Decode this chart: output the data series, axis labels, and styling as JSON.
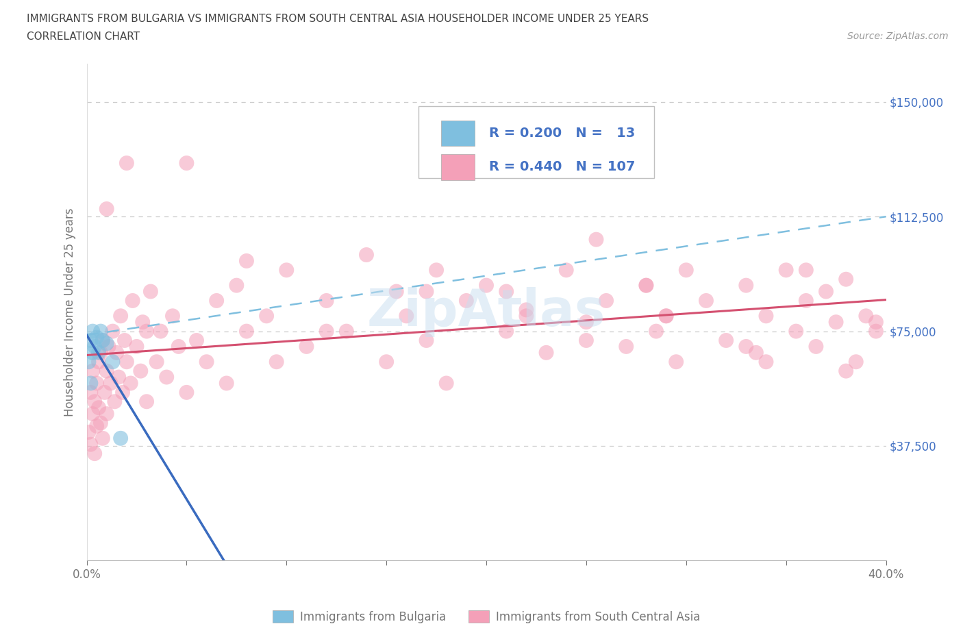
{
  "title_line1": "IMMIGRANTS FROM BULGARIA VS IMMIGRANTS FROM SOUTH CENTRAL ASIA HOUSEHOLDER INCOME UNDER 25 YEARS",
  "title_line2": "CORRELATION CHART",
  "source_text": "Source: ZipAtlas.com",
  "ylabel": "Householder Income Under 25 years",
  "xlim": [
    0.0,
    0.4
  ],
  "ylim": [
    0,
    162500
  ],
  "ytick_positions": [
    0,
    37500,
    75000,
    112500,
    150000
  ],
  "ytick_labels": [
    "",
    "$37,500",
    "$75,000",
    "$112,500",
    "$150,000"
  ],
  "xtick_positions": [
    0.0,
    0.05,
    0.1,
    0.15,
    0.2,
    0.25,
    0.3,
    0.35,
    0.4
  ],
  "xtick_labels": [
    "0.0%",
    "",
    "",
    "",
    "",
    "",
    "",
    "",
    "40.0%"
  ],
  "R_bulgaria": 0.2,
  "N_bulgaria": 13,
  "R_sca": 0.44,
  "N_sca": 107,
  "bulgaria_color": "#7fbfdf",
  "sca_color": "#f4a0b8",
  "regression_bulgaria_solid_color": "#3a6bbf",
  "regression_sca_color": "#d45070",
  "regression_bulgaria_dash_color": "#7fbfdf",
  "bg_color": "#ffffff",
  "grid_color": "#cccccc",
  "watermark_text": "ZipAtlas",
  "watermark_color": "#c8dff0",
  "title_color": "#444444",
  "source_color": "#999999",
  "axis_label_color": "#777777",
  "right_tick_color": "#4472c4",
  "legend_text_color": "#4472c4",
  "bottom_legend_bulgaria_label": "Immigrants from Bulgaria",
  "bottom_legend_sca_label": "Immigrants from South Central Asia",
  "bg_x": [
    0.001,
    0.002,
    0.002,
    0.003,
    0.003,
    0.004,
    0.005,
    0.006,
    0.007,
    0.008,
    0.01,
    0.013,
    0.017
  ],
  "bg_y": [
    65000,
    72000,
    58000,
    68000,
    75000,
    70000,
    73000,
    68000,
    75000,
    72000,
    71000,
    65000,
    40000
  ],
  "sca_x": [
    0.001,
    0.002,
    0.002,
    0.003,
    0.003,
    0.004,
    0.004,
    0.005,
    0.005,
    0.006,
    0.006,
    0.007,
    0.007,
    0.008,
    0.008,
    0.009,
    0.01,
    0.01,
    0.011,
    0.012,
    0.013,
    0.014,
    0.015,
    0.016,
    0.017,
    0.018,
    0.019,
    0.02,
    0.022,
    0.023,
    0.025,
    0.027,
    0.028,
    0.03,
    0.032,
    0.035,
    0.037,
    0.04,
    0.043,
    0.046,
    0.05,
    0.055,
    0.06,
    0.065,
    0.07,
    0.075,
    0.08,
    0.09,
    0.095,
    0.1,
    0.11,
    0.12,
    0.13,
    0.14,
    0.15,
    0.155,
    0.16,
    0.17,
    0.175,
    0.18,
    0.19,
    0.2,
    0.21,
    0.22,
    0.23,
    0.24,
    0.25,
    0.255,
    0.26,
    0.27,
    0.28,
    0.285,
    0.29,
    0.295,
    0.3,
    0.31,
    0.32,
    0.33,
    0.335,
    0.34,
    0.35,
    0.355,
    0.36,
    0.365,
    0.37,
    0.375,
    0.38,
    0.385,
    0.39,
    0.395,
    0.01,
    0.02,
    0.03,
    0.05,
    0.08,
    0.12,
    0.17,
    0.22,
    0.28,
    0.33,
    0.36,
    0.38,
    0.395,
    0.21,
    0.25,
    0.29,
    0.34
  ],
  "sca_y": [
    42000,
    38000,
    55000,
    48000,
    62000,
    35000,
    52000,
    58000,
    44000,
    65000,
    50000,
    45000,
    68000,
    40000,
    72000,
    55000,
    62000,
    48000,
    70000,
    58000,
    75000,
    52000,
    68000,
    60000,
    80000,
    55000,
    72000,
    65000,
    58000,
    85000,
    70000,
    62000,
    78000,
    52000,
    88000,
    65000,
    75000,
    60000,
    80000,
    70000,
    55000,
    72000,
    65000,
    85000,
    58000,
    90000,
    75000,
    80000,
    65000,
    95000,
    70000,
    85000,
    75000,
    100000,
    65000,
    88000,
    80000,
    72000,
    95000,
    58000,
    85000,
    90000,
    75000,
    80000,
    68000,
    95000,
    78000,
    105000,
    85000,
    70000,
    90000,
    75000,
    80000,
    65000,
    95000,
    85000,
    72000,
    90000,
    68000,
    80000,
    95000,
    75000,
    85000,
    70000,
    88000,
    78000,
    92000,
    65000,
    80000,
    75000,
    115000,
    130000,
    75000,
    130000,
    98000,
    75000,
    88000,
    82000,
    90000,
    70000,
    95000,
    62000,
    78000,
    88000,
    72000,
    80000,
    65000
  ]
}
